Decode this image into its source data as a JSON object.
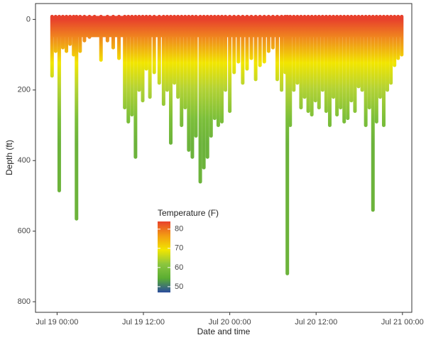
{
  "chart_data": {
    "type": "dive",
    "x_label": "Date and time",
    "y_label": "Depth (ft)",
    "xlim": [
      -3,
      49.3
    ],
    "ylim": [
      830,
      -45
    ],
    "xticks": [
      {
        "value": 0,
        "label": "Jul 19 00:00"
      },
      {
        "value": 12,
        "label": "Jul 19 12:00"
      },
      {
        "value": 24,
        "label": "Jul 20 00:00"
      },
      {
        "value": 36,
        "label": "Jul 20 12:00"
      },
      {
        "value": 48,
        "label": "Jul 21 00:00"
      }
    ],
    "yticks": [
      0,
      200,
      400,
      600,
      800
    ],
    "x": [
      -0.7,
      -0.2,
      0.3,
      0.8,
      1.3,
      1.8,
      2.3,
      2.7,
      3.2,
      3.8,
      4.5,
      5.2,
      6.1,
      7,
      7.8,
      8.6,
      9.4,
      9.9,
      10.4,
      10.9,
      11.4,
      11.9,
      12.4,
      12.9,
      13.5,
      14.2,
      14.8,
      15.3,
      15.8,
      16.3,
      16.8,
      17.3,
      17.8,
      18.3,
      18.8,
      19.3,
      19.9,
      20.4,
      20.9,
      21.4,
      21.9,
      22.4,
      22.9,
      23.4,
      24,
      24.6,
      25.2,
      25.8,
      26.4,
      27,
      27.6,
      28.2,
      28.8,
      29.4,
      30,
      30.6,
      31.2,
      31.7,
      32,
      32.4,
      32.9,
      33.4,
      33.9,
      34.4,
      34.9,
      35.4,
      35.9,
      36.4,
      36.9,
      37.4,
      37.9,
      38.4,
      38.9,
      39.4,
      39.9,
      40.4,
      40.9,
      41.4,
      41.9,
      42.4,
      42.9,
      43.4,
      43.9,
      44.4,
      44.9,
      45.4,
      45.9,
      46.4,
      46.9,
      47.4,
      47.9
    ],
    "values": [
      160,
      90,
      485,
      80,
      90,
      70,
      100,
      565,
      90,
      60,
      50,
      40,
      115,
      60,
      80,
      110,
      250,
      290,
      270,
      390,
      200,
      230,
      140,
      220,
      150,
      180,
      240,
      200,
      350,
      180,
      220,
      300,
      250,
      370,
      390,
      330,
      460,
      420,
      390,
      330,
      280,
      300,
      290,
      200,
      260,
      150,
      120,
      180,
      140,
      110,
      170,
      130,
      120,
      90,
      80,
      170,
      200,
      150,
      720,
      300,
      200,
      180,
      250,
      220,
      260,
      270,
      230,
      250,
      200,
      260,
      300,
      220,
      270,
      250,
      290,
      280,
      230,
      260,
      190,
      200,
      300,
      250,
      540,
      290,
      220,
      300,
      200,
      180,
      130,
      110,
      100
    ],
    "colorbar": {
      "title": "Temperature (F)",
      "lim": [
        47,
        84
      ],
      "ticks": [
        50,
        60,
        70,
        80
      ],
      "colors": [
        "#2b4c9c",
        "#5aae32",
        "#8cc63f",
        "#f2e600",
        "#f39c12",
        "#e8412c"
      ]
    }
  }
}
